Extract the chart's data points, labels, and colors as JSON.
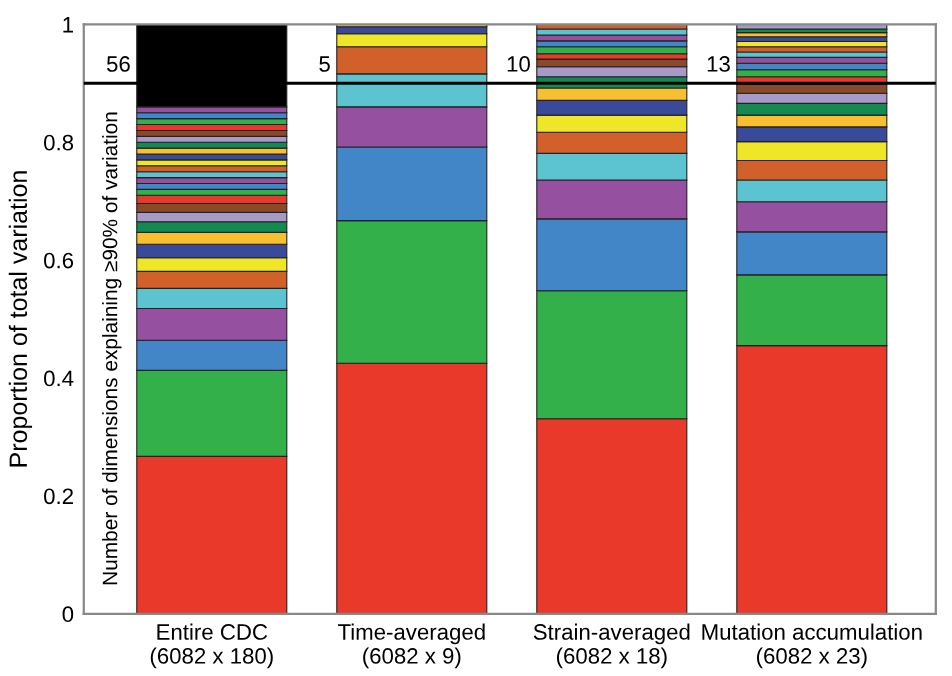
{
  "chart_data": {
    "type": "bar",
    "stacked": true,
    "ylabel": "Proportion of total variation",
    "categories": [
      "Entire CDC\n(6082 x 180)",
      "Time-averaged\n(6082 x 9)",
      "Strain-averaged\n(6082 x 18)",
      "Mutation accumulation\n(6082 x 23)"
    ],
    "ylim": [
      0,
      1
    ],
    "yticks": [
      0,
      0.2,
      0.4,
      0.6,
      0.8,
      1
    ],
    "grid": false,
    "legend": false,
    "ref_lines": [
      {
        "axis": "y",
        "value": 0.9,
        "color": "#000000"
      }
    ],
    "annotations": [
      "Number of dimensions explaining ≥90% of variation",
      "56",
      "5",
      "10",
      "13"
    ],
    "series": [
      {
        "color": "#e8392a",
        "values": [
          0.267,
          0.425,
          0.331,
          0.455
        ]
      },
      {
        "color": "#33b04a",
        "values": [
          0.146,
          0.242,
          0.217,
          0.12
        ]
      },
      {
        "color": "#4286c8",
        "values": [
          0.051,
          0.125,
          0.122,
          0.073
        ]
      },
      {
        "color": "#9650a0",
        "values": [
          0.054,
          0.068,
          0.066,
          0.051
        ]
      },
      {
        "color": "#5bc4d0",
        "values": [
          0.034,
          0.056,
          0.045,
          0.037
        ]
      },
      {
        "color": "#d2602a",
        "values": [
          0.029,
          0.046,
          0.036,
          0.033
        ]
      },
      {
        "color": "#f0e628",
        "values": [
          0.023,
          0.022,
          0.029,
          0.032
        ]
      },
      {
        "color": "#3a4a9a",
        "values": [
          0.023,
          0.012,
          0.025,
          0.025
        ]
      },
      {
        "color": "#f8c030",
        "values": [
          0.02,
          0.004,
          0.021,
          0.02
        ]
      },
      {
        "color": "#138a50",
        "values": [
          0.018,
          null,
          0.019,
          0.02
        ]
      },
      {
        "color": "#a89ac8",
        "values": [
          0.016,
          null,
          0.017,
          0.017
        ]
      },
      {
        "color": "#8a4a2a",
        "values": [
          0.015,
          null,
          0.013,
          0.015
        ]
      },
      {
        "color": "#e8392a",
        "values": [
          0.014,
          null,
          0.009,
          0.013
        ]
      },
      {
        "color": "#33b04a",
        "values": [
          0.01,
          null,
          0.012,
          0.012
        ]
      },
      {
        "color": "#4286c8",
        "values": [
          0.01,
          null,
          0.01,
          0.011
        ]
      },
      {
        "color": "#9650a0",
        "values": [
          0.01,
          null,
          0.01,
          0.01
        ]
      },
      {
        "color": "#5bc4d0",
        "values": [
          0.01,
          null,
          0.01,
          0.009
        ]
      },
      {
        "color": "#d2602a",
        "values": [
          0.01,
          null,
          0.008,
          0.009
        ]
      },
      {
        "color": "#f0e628",
        "values": [
          0.01,
          null,
          null,
          0.009
        ]
      },
      {
        "color": "#3a4a9a",
        "values": [
          0.01,
          null,
          null,
          0.008
        ]
      },
      {
        "color": "#f8c030",
        "values": [
          0.01,
          null,
          null,
          0.007
        ]
      },
      {
        "color": "#138a50",
        "values": [
          0.01,
          null,
          null,
          0.006
        ]
      },
      {
        "color": "#a89ac8",
        "values": [
          0.01,
          null,
          null,
          0.008
        ]
      },
      {
        "color": "#8a4a2a",
        "values": [
          0.01,
          null,
          null,
          null
        ]
      },
      {
        "color": "#e8392a",
        "values": [
          0.01,
          null,
          null,
          null
        ]
      },
      {
        "color": "#33b04a",
        "values": [
          0.01,
          null,
          null,
          null
        ]
      },
      {
        "color": "#4286c8",
        "values": [
          0.01,
          null,
          null,
          null
        ]
      },
      {
        "color": "#9650a0",
        "values": [
          0.01,
          null,
          null,
          null
        ]
      },
      {
        "color": "#000000",
        "values": [
          0.14,
          null,
          null,
          null
        ]
      }
    ]
  }
}
